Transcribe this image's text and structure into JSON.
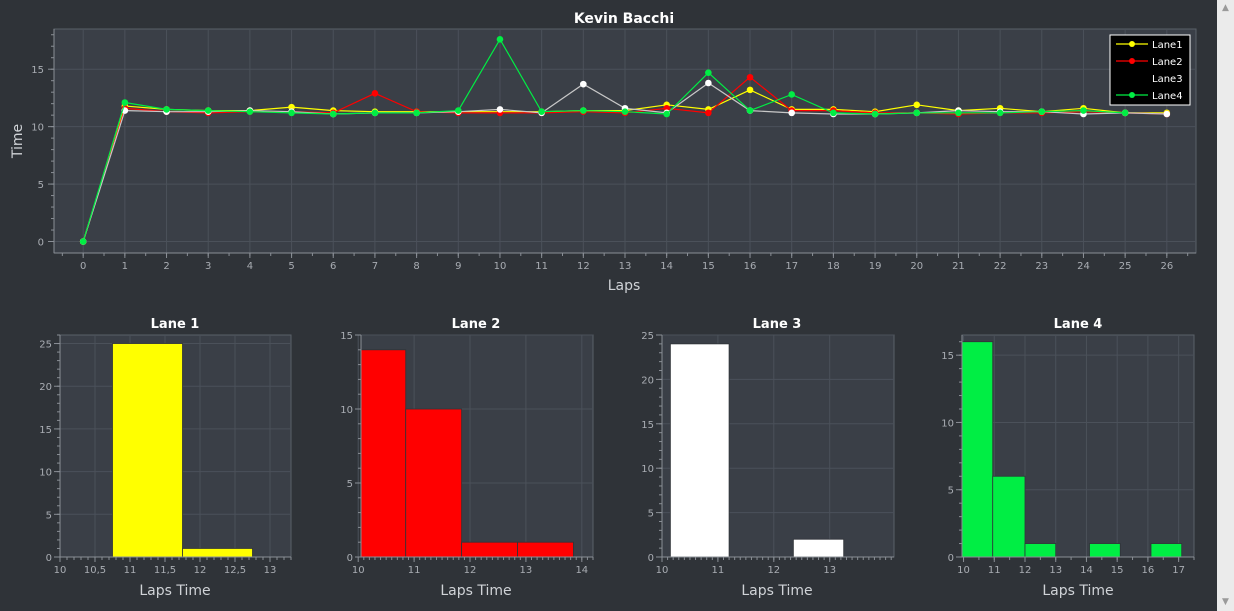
{
  "colors": {
    "background": "#2f3338",
    "plot_bg": "#3a3f47",
    "grid": "#4b515a",
    "axis": "#8a8f96",
    "tick_text": "#a9adb3",
    "title_text": "#ffffff",
    "label_text": "#d0d3d7",
    "lane1": "#ffff00",
    "lane2": "#ff0000",
    "lane3": "#ffffff",
    "lane4": "#00ee44"
  },
  "scrollbar": {
    "up_icon": "chevron-up-icon",
    "down_icon": "chevron-down-icon"
  },
  "chart_data": [
    {
      "type": "line",
      "title": "Kevin Bacchi",
      "xlabel": "Laps",
      "ylabel": "Time",
      "xlim": [
        -0.7,
        26.7
      ],
      "ylim": [
        -1,
        18.5
      ],
      "yticks": [
        0,
        5,
        10,
        15
      ],
      "xticks": [
        0,
        1,
        2,
        3,
        4,
        5,
        6,
        7,
        8,
        9,
        10,
        11,
        12,
        13,
        14,
        15,
        16,
        17,
        18,
        19,
        20,
        21,
        22,
        23,
        24,
        25,
        26
      ],
      "grid": true,
      "legend_position": "top-right",
      "x": [
        0,
        1,
        2,
        3,
        4,
        5,
        6,
        7,
        8,
        9,
        10,
        11,
        12,
        13,
        14,
        15,
        16,
        17,
        18,
        19,
        20,
        21,
        22,
        23,
        24,
        25,
        26
      ],
      "series": [
        {
          "name": "Lane1",
          "color": "#ffff00",
          "values": [
            0,
            11.8,
            11.5,
            11.4,
            11.4,
            11.7,
            11.4,
            11.3,
            11.3,
            11.3,
            11.3,
            11.3,
            11.4,
            11.4,
            11.9,
            11.5,
            13.2,
            11.5,
            11.5,
            11.3,
            11.9,
            11.4,
            11.6,
            11.3,
            11.6,
            11.2,
            11.2
          ]
        },
        {
          "name": "Lane2",
          "color": "#ff0000",
          "values": [
            0,
            11.6,
            11.3,
            11.2,
            11.3,
            11.3,
            11.2,
            12.9,
            11.3,
            11.2,
            11.2,
            11.2,
            11.3,
            11.2,
            11.6,
            11.2,
            14.3,
            11.4,
            11.4,
            11.2,
            11.2,
            11.1,
            11.2,
            11.2,
            11.3,
            11.2,
            11.1
          ]
        },
        {
          "name": "Lane3",
          "color": "#ffffff",
          "line_color": "#c8c8c8",
          "values": [
            0,
            11.4,
            11.3,
            11.3,
            11.4,
            11.3,
            11.1,
            11.2,
            11.2,
            11.3,
            11.5,
            11.2,
            13.7,
            11.6,
            11.2,
            13.8,
            11.4,
            11.2,
            11.1,
            11.1,
            11.2,
            11.4,
            11.3,
            11.3,
            11.1,
            11.2,
            11.1
          ]
        },
        {
          "name": "Lane4",
          "color": "#00ee44",
          "values": [
            0,
            12.1,
            11.5,
            11.4,
            11.3,
            11.2,
            11.1,
            11.2,
            11.2,
            11.4,
            17.6,
            11.3,
            11.4,
            11.3,
            11.1,
            14.7,
            11.4,
            12.8,
            11.2,
            11.1,
            11.2,
            11.2,
            11.2,
            11.3,
            11.4,
            11.2,
            null
          ]
        }
      ]
    },
    {
      "type": "bar",
      "title": "Lane 1",
      "xlabel": "Laps Time",
      "ylabel": "",
      "color": "#ffff00",
      "xlim": [
        10,
        13.3
      ],
      "ylim": [
        0,
        26
      ],
      "xtick_labels": [
        [
          10,
          "10"
        ],
        [
          10.5,
          "10,5"
        ],
        [
          11,
          "11"
        ],
        [
          11.5,
          "11,5"
        ],
        [
          12,
          "12"
        ],
        [
          12.5,
          "12,5"
        ],
        [
          13,
          "13"
        ]
      ],
      "yticks": [
        0,
        5,
        10,
        15,
        20,
        25
      ],
      "bins": [
        {
          "x0": 10.75,
          "x1": 11.75,
          "value": 25
        },
        {
          "x0": 11.75,
          "x1": 12.75,
          "value": 1
        }
      ]
    },
    {
      "type": "bar",
      "title": "Lane 2",
      "xlabel": "Laps Time",
      "ylabel": "",
      "color": "#ff0000",
      "xlim": [
        10.05,
        14.2
      ],
      "ylim": [
        0,
        15
      ],
      "xtick_labels": [
        [
          10,
          "10"
        ],
        [
          11,
          "11"
        ],
        [
          12,
          "12"
        ],
        [
          13,
          "13"
        ],
        [
          14,
          "14"
        ]
      ],
      "yticks": [
        0,
        5,
        10,
        15
      ],
      "bins": [
        {
          "x0": 10.05,
          "x1": 10.85,
          "value": 14
        },
        {
          "x0": 10.85,
          "x1": 11.85,
          "value": 10
        },
        {
          "x0": 11.85,
          "x1": 12.85,
          "value": 1
        },
        {
          "x0": 12.85,
          "x1": 13.85,
          "value": 1
        }
      ]
    },
    {
      "type": "bar",
      "title": "Lane 3",
      "xlabel": "Laps Time",
      "ylabel": "",
      "color": "#ffffff",
      "xlim": [
        10,
        14.15
      ],
      "ylim": [
        0,
        25
      ],
      "xtick_labels": [
        [
          10,
          "10"
        ],
        [
          11,
          "11"
        ],
        [
          12,
          "12"
        ],
        [
          13,
          "13"
        ]
      ],
      "yticks": [
        0,
        5,
        10,
        15,
        20,
        25
      ],
      "bins": [
        {
          "x0": 10.15,
          "x1": 11.2,
          "value": 24
        },
        {
          "x0": 12.35,
          "x1": 13.25,
          "value": 2
        }
      ]
    },
    {
      "type": "bar",
      "title": "Lane 4",
      "xlabel": "Laps Time",
      "ylabel": "",
      "color": "#00ee44",
      "xlim": [
        9.95,
        17.5
      ],
      "ylim": [
        0,
        16.5
      ],
      "xtick_labels": [
        [
          10,
          "10"
        ],
        [
          11,
          "11"
        ],
        [
          12,
          "12"
        ],
        [
          13,
          "13"
        ],
        [
          14,
          "14"
        ],
        [
          15,
          "15"
        ],
        [
          16,
          "16"
        ],
        [
          17,
          "17"
        ]
      ],
      "yticks": [
        0,
        5,
        10,
        15
      ],
      "bins": [
        {
          "x0": 9.95,
          "x1": 10.95,
          "value": 16
        },
        {
          "x0": 10.95,
          "x1": 12.0,
          "value": 6
        },
        {
          "x0": 12.0,
          "x1": 13.0,
          "value": 1
        },
        {
          "x0": 14.1,
          "x1": 15.1,
          "value": 1
        },
        {
          "x0": 16.1,
          "x1": 17.1,
          "value": 1
        }
      ]
    }
  ]
}
